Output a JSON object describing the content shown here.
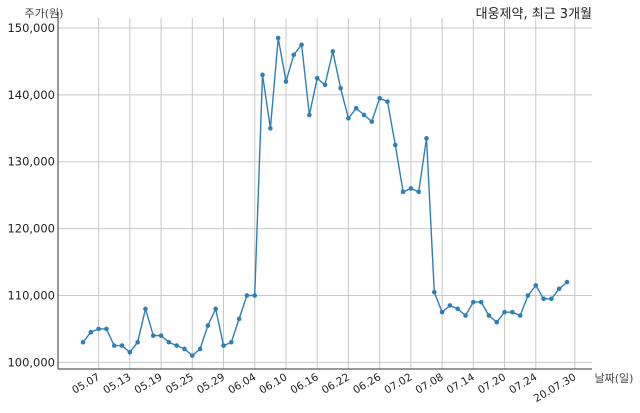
{
  "chart_data": {
    "type": "line",
    "title": "대웅제약, 최근 3개월",
    "ylabel": "주가(원)",
    "xlabel": "날짜(일)",
    "ylim": [
      99000,
      151500
    ],
    "grid": true,
    "y_ticks": [
      100000,
      110000,
      120000,
      130000,
      140000,
      150000
    ],
    "y_tick_labels": [
      "100,000",
      "110,000",
      "120,000",
      "130,000",
      "140,000",
      "150,000"
    ],
    "x_tick_labels": [
      "05.07",
      "05.13",
      "05.19",
      "05.25",
      "05.29",
      "06.04",
      "06.10",
      "06.16",
      "06.22",
      "06.26",
      "07.02",
      "07.08",
      "07.14",
      "07.20",
      "07.24",
      "20.07.30"
    ],
    "x_tick_indices": [
      2,
      6,
      10,
      14,
      18,
      22,
      26,
      30,
      34,
      38,
      42,
      46,
      50,
      54,
      58,
      63
    ],
    "color": "#2e7fb5",
    "series": [
      {
        "values": [
          103000,
          104500,
          105000,
          105000,
          102500,
          102500,
          101500,
          103000,
          108000,
          104000,
          104000,
          103000,
          102500,
          102000,
          101000,
          102000,
          105500,
          108000,
          102500,
          103000,
          106500,
          110000,
          110000,
          143000,
          135000,
          148500,
          142000,
          146000,
          147500,
          137000,
          142500,
          141500,
          146500,
          141000,
          136500,
          138000,
          137000,
          136000,
          139500,
          139000,
          132500,
          125500,
          126000,
          125500,
          133500,
          110500,
          107500,
          108500,
          108000,
          107000,
          109000,
          109000,
          107000,
          106000,
          107500,
          107500,
          107000,
          110000,
          111500,
          109500,
          109500,
          111000,
          112000
        ]
      }
    ]
  }
}
